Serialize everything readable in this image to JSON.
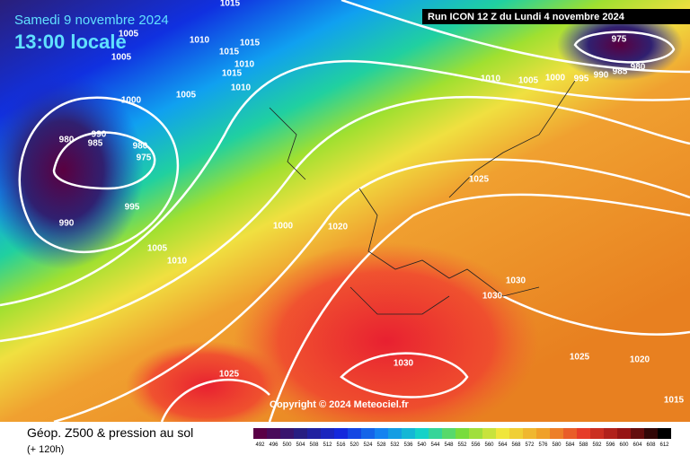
{
  "header": {
    "date": "Samedi 9 novembre 2024",
    "time": "13:00 locale",
    "run": "Run ICON 12 Z du Lundi 4 novembre 2024"
  },
  "copyright": "Copyright © 2024 Meteociel.fr",
  "footer": {
    "title": "Géop. Z500 & pression au sol",
    "lead": "(+ 120h)"
  },
  "scale": [
    492,
    496,
    500,
    504,
    508,
    512,
    516,
    520,
    524,
    528,
    532,
    536,
    540,
    544,
    548,
    552,
    556,
    560,
    564,
    568,
    572,
    576,
    580,
    584,
    588,
    592,
    596,
    600,
    604,
    608,
    612
  ],
  "isobars": [
    "1015",
    "1005",
    "1005",
    "1010",
    "1015",
    "1015",
    "1010",
    "1015",
    "1010",
    "1005",
    "1000",
    "990",
    "985",
    "980",
    "980",
    "975",
    "995",
    "990",
    "1005",
    "1010",
    "1000",
    "1020",
    "1025",
    "1030",
    "1030",
    "1030",
    "1025",
    "1025",
    "1020",
    "1015",
    "975",
    "980",
    "985",
    "990",
    "995",
    "1000",
    "1005",
    "1010"
  ]
}
